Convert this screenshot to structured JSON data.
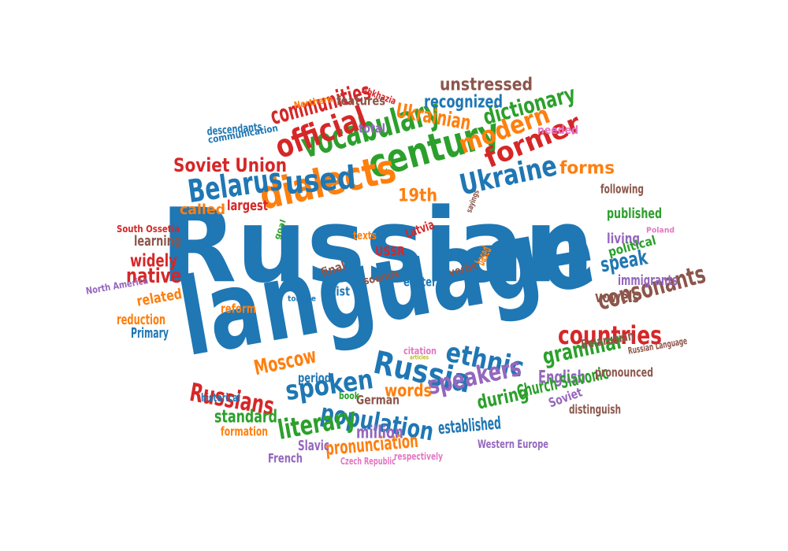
{
  "palette": {
    "blue": "#1f77b4",
    "orange": "#ff7f0e",
    "green": "#2ca02c",
    "red": "#d62728",
    "purple": "#9467bd",
    "brown": "#8c564b",
    "pink": "#e377c2",
    "olive": "#bcbd22"
  },
  "words": [
    {
      "text": "Russian",
      "color": "blue"
    },
    {
      "text": "language",
      "color": "blue"
    },
    {
      "text": "century",
      "color": "green"
    },
    {
      "text": "dialects",
      "color": "orange"
    },
    {
      "text": "vocabulary",
      "color": "green"
    },
    {
      "text": "used",
      "color": "blue"
    },
    {
      "text": "Belarus",
      "color": "blue"
    },
    {
      "text": "Ukraine",
      "color": "blue"
    },
    {
      "text": "official",
      "color": "red"
    },
    {
      "text": "modern",
      "color": "orange"
    },
    {
      "text": "former",
      "color": "red"
    },
    {
      "text": "Russia",
      "color": "blue"
    },
    {
      "text": "ethnic",
      "color": "blue"
    },
    {
      "text": "countries",
      "color": "red"
    },
    {
      "text": "spoken",
      "color": "blue"
    },
    {
      "text": "Russians",
      "color": "red"
    },
    {
      "text": "population",
      "color": "blue"
    },
    {
      "text": "speakers",
      "color": "purple"
    },
    {
      "text": "literary",
      "color": "green"
    },
    {
      "text": "grammar",
      "color": "green"
    },
    {
      "text": "consonants",
      "color": "brown"
    },
    {
      "text": "speak",
      "color": "blue"
    },
    {
      "text": "Soviet Union",
      "color": "red"
    },
    {
      "text": "communities",
      "color": "red"
    },
    {
      "text": "dictionary",
      "color": "green"
    },
    {
      "text": "Ukrainian",
      "color": "orange"
    },
    {
      "text": "recognized",
      "color": "blue"
    },
    {
      "text": "unstressed",
      "color": "brown"
    },
    {
      "text": "forms",
      "color": "orange"
    },
    {
      "text": "19th",
      "color": "orange"
    },
    {
      "text": "Moscow",
      "color": "orange"
    },
    {
      "text": "native",
      "color": "red"
    },
    {
      "text": "widely",
      "color": "red"
    },
    {
      "text": "words",
      "color": "orange"
    },
    {
      "text": "during",
      "color": "green"
    },
    {
      "text": "standard",
      "color": "green"
    },
    {
      "text": "pronunciation",
      "color": "orange"
    },
    {
      "text": "million",
      "color": "purple"
    },
    {
      "text": "established",
      "color": "blue"
    },
    {
      "text": "English",
      "color": "purple"
    },
    {
      "text": "Church Slavonic",
      "color": "green"
    },
    {
      "text": "Soviet",
      "color": "purple"
    },
    {
      "text": "vowels",
      "color": "brown"
    },
    {
      "text": "features",
      "color": "brown"
    },
    {
      "text": "total",
      "color": "purple"
    },
    {
      "text": "called",
      "color": "orange"
    },
    {
      "text": "largest",
      "color": "red"
    },
    {
      "text": "learning",
      "color": "brown"
    },
    {
      "text": "related",
      "color": "orange"
    },
    {
      "text": "reduction",
      "color": "orange"
    },
    {
      "text": "Primary",
      "color": "blue"
    },
    {
      "text": "reform",
      "color": "orange"
    },
    {
      "text": "exist",
      "color": "blue"
    },
    {
      "text": "final",
      "color": "brown"
    },
    {
      "text": "USSR",
      "color": "red"
    },
    {
      "text": "Latvia",
      "color": "red"
    },
    {
      "text": "published",
      "color": "green"
    },
    {
      "text": "living",
      "color": "purple"
    },
    {
      "text": "political",
      "color": "green"
    },
    {
      "text": "immigrants",
      "color": "purple"
    },
    {
      "text": "following",
      "color": "brown"
    },
    {
      "text": "Belarusian",
      "color": "brown"
    },
    {
      "text": "pronounced",
      "color": "brown"
    },
    {
      "text": "distinguish",
      "color": "brown"
    },
    {
      "text": "eastern",
      "color": "blue"
    },
    {
      "text": "verbs",
      "color": "brown"
    },
    {
      "text": "sounds",
      "color": "brown"
    },
    {
      "text": "texts",
      "color": "orange"
    },
    {
      "text": "German",
      "color": "brown"
    },
    {
      "text": "Slavic",
      "color": "purple"
    },
    {
      "text": "French",
      "color": "purple"
    },
    {
      "text": "formation",
      "color": "orange"
    },
    {
      "text": "historical",
      "color": "blue"
    },
    {
      "text": "Western Europe",
      "color": "purple"
    },
    {
      "text": "Czech Republic",
      "color": "pink"
    },
    {
      "text": "respectively",
      "color": "pink"
    },
    {
      "text": "citation",
      "color": "pink"
    },
    {
      "text": "articles",
      "color": "olive"
    },
    {
      "text": "book",
      "color": "green"
    },
    {
      "text": "period",
      "color": "blue"
    },
    {
      "text": "descendants",
      "color": "blue"
    },
    {
      "text": "communication",
      "color": "blue"
    },
    {
      "text": "Northern",
      "color": "orange"
    },
    {
      "text": "Abkhazia",
      "color": "red"
    },
    {
      "text": "needed",
      "color": "pink"
    },
    {
      "text": "South Ossetia",
      "color": "red"
    },
    {
      "text": "North America",
      "color": "purple"
    },
    {
      "text": "goal",
      "color": "green"
    },
    {
      "text": "sayings",
      "color": "brown"
    },
    {
      "text": "Poland",
      "color": "pink"
    },
    {
      "text": "based",
      "color": "orange"
    },
    {
      "text": "tongue",
      "color": "blue"
    },
    {
      "text": "Russian Language",
      "color": "brown"
    }
  ]
}
